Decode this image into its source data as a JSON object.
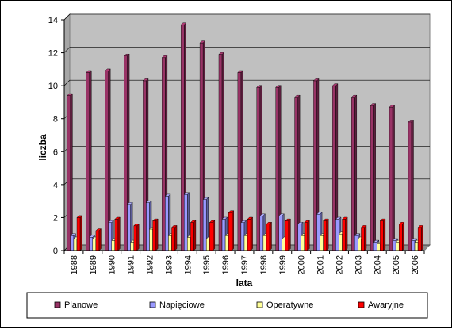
{
  "chart_data": {
    "type": "bar",
    "xlabel": "lata",
    "ylabel": "liczba",
    "ylim": [
      0,
      14
    ],
    "yticks": [
      0,
      2,
      4,
      6,
      8,
      10,
      12,
      14
    ],
    "grid": "horizontal",
    "legend_position": "bottom",
    "categories": [
      "1988",
      "1989",
      "1990",
      "1991",
      "1992",
      "1993",
      "1994",
      "1995",
      "1996",
      "1997",
      "1998",
      "1999",
      "2000",
      "2001",
      "2002",
      "2003",
      "2004",
      "2005",
      "2006"
    ],
    "series": [
      {
        "name": "Planowe",
        "color": "#993366",
        "values": [
          9.4,
          10.8,
          10.9,
          11.8,
          10.3,
          11.7,
          13.7,
          12.6,
          11.9,
          10.8,
          9.9,
          9.9,
          9.3,
          10.3,
          10.0,
          9.3,
          8.8,
          8.7,
          7.8
        ]
      },
      {
        "name": "Napięciowe",
        "color": "#9999ff",
        "values": [
          0.9,
          0.8,
          1.7,
          2.8,
          2.9,
          3.3,
          3.4,
          3.1,
          1.9,
          1.7,
          2.1,
          2.1,
          1.6,
          2.2,
          1.9,
          0.9,
          0.5,
          0.6,
          0.6
        ]
      },
      {
        "name": "Operatywne",
        "color": "#ffff99",
        "values": [
          0.7,
          0.7,
          0.6,
          0.5,
          1.3,
          0.9,
          0.8,
          0.7,
          0.9,
          0.9,
          0.9,
          0.7,
          0.9,
          0.9,
          1.0,
          0.7,
          0.4,
          0.5,
          0.5
        ]
      },
      {
        "name": "Awaryjne",
        "color": "#ff0000",
        "values": [
          2.0,
          1.2,
          1.9,
          1.5,
          1.8,
          1.4,
          1.7,
          1.7,
          2.3,
          1.9,
          1.6,
          1.8,
          1.7,
          1.8,
          1.9,
          1.4,
          1.8,
          1.6,
          1.4
        ]
      }
    ]
  }
}
